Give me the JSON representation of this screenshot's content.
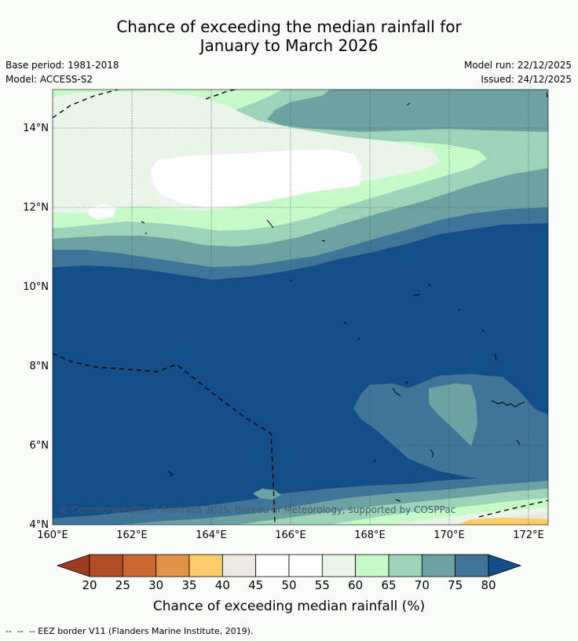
{
  "header": {
    "title_line1": "Chance of exceeding the median rainfall for",
    "title_line2": "January to March 2026",
    "base_period": "Base period: 1981-2018",
    "model": "Model: ACCESS-S2",
    "model_run": "Model run: 22/12/2025",
    "issued": "Issued: 24/12/2025"
  },
  "map": {
    "credit": "© Commonwealth of Australia 2025, Bureau of Meteorology, supported by COSPPac"
  },
  "chart_data": {
    "type": "heatmap",
    "title": "Chance of exceeding the median rainfall for January to March 2026",
    "x_ticks": [
      "160°E",
      "162°E",
      "164°E",
      "166°E",
      "168°E",
      "170°E",
      "172°E"
    ],
    "y_ticks": [
      "4°N",
      "6°N",
      "8°N",
      "10°N",
      "12°N",
      "14°N"
    ],
    "xlim": [
      160,
      172.5
    ],
    "ylim": [
      4,
      15
    ],
    "colorbar": {
      "label": "Chance of exceeding median rainfall (%)",
      "levels": [
        "20",
        "25",
        "30",
        "35",
        "40",
        "45",
        "50",
        "55",
        "60",
        "65",
        "70",
        "75",
        "80"
      ],
      "colors": [
        "#9c3b20",
        "#b34d27",
        "#cf6633",
        "#e29447",
        "#fccd6a",
        "#ebe8e3",
        "#ffffff",
        "#ffffff",
        "#eaf5ea",
        "#c8fac8",
        "#9dd3b8",
        "#6ca2a2",
        "#3f7598",
        "#144e88"
      ]
    },
    "background_min_percent": 80
  },
  "footer": {
    "legend": "--  --  -- EEZ border V11 (Flanders Marine Institute, 2019)."
  }
}
